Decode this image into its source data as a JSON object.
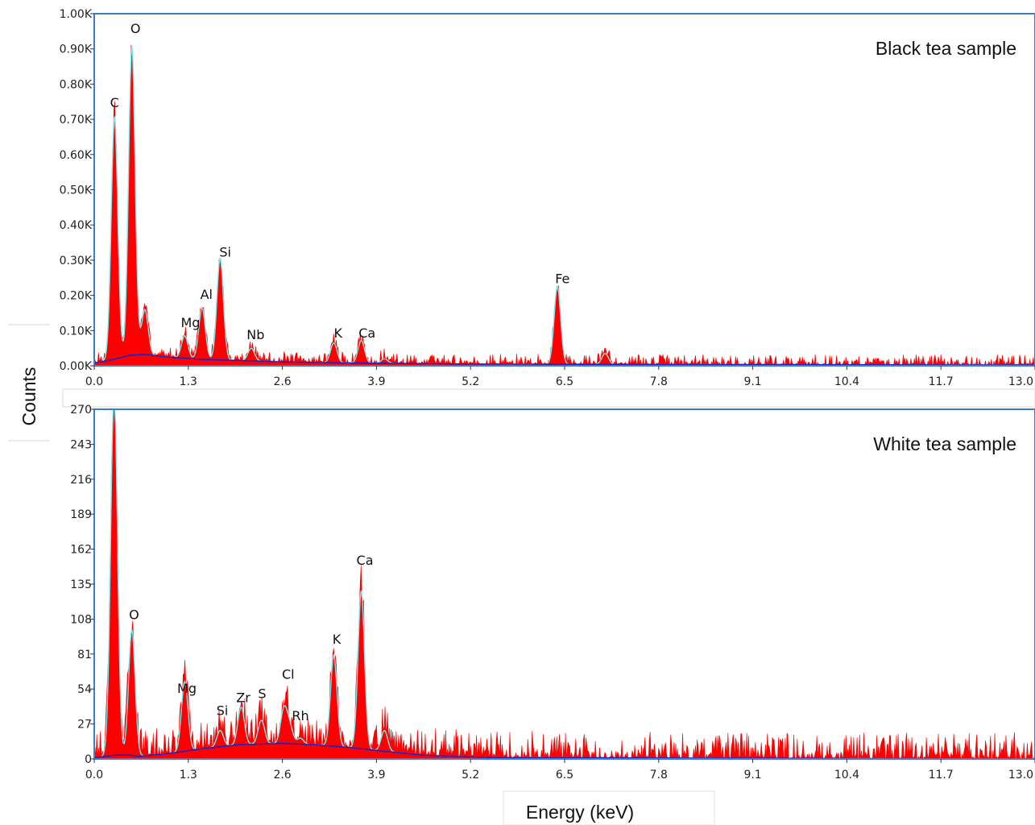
{
  "figure": {
    "ylabel": "Counts",
    "xlabel": "Energy (keV)"
  },
  "colors": {
    "fill": "#ff0000",
    "fit": "#7fe8ee",
    "background_fit": "#2020c0",
    "frame": "#3a7fc4"
  },
  "chart_data": [
    {
      "type": "area",
      "title": "Black tea sample",
      "xlim": [
        0,
        13.0
      ],
      "ylim": [
        0,
        1000
      ],
      "x_ticks": [
        0.0,
        1.3,
        2.6,
        3.9,
        5.2,
        6.5,
        7.8,
        9.1,
        10.4,
        11.7,
        13.0
      ],
      "x_tick_labels": [
        "0.0",
        "1.3",
        "2.6",
        "3.9",
        "5.2",
        "6.5",
        "7.8",
        "9.1",
        "10.4",
        "11.7",
        "13.0"
      ],
      "y_ticks": [
        0,
        100,
        200,
        300,
        400,
        500,
        600,
        700,
        800,
        900,
        1000
      ],
      "y_tick_labels": [
        "0.00K",
        "0.10K",
        "0.20K",
        "0.30K",
        "0.40K",
        "0.50K",
        "0.60K",
        "0.70K",
        "0.80K",
        "0.90K",
        "1.00K"
      ],
      "peaks": [
        {
          "energy": 0.28,
          "counts": 710
        },
        {
          "energy": 0.52,
          "counts": 910
        },
        {
          "energy": 0.7,
          "counts": 160
        },
        {
          "energy": 1.25,
          "counts": 85
        },
        {
          "energy": 1.49,
          "counts": 165
        },
        {
          "energy": 1.74,
          "counts": 305
        },
        {
          "energy": 2.17,
          "counts": 50
        },
        {
          "energy": 3.31,
          "counts": 65
        },
        {
          "energy": 3.69,
          "counts": 72
        },
        {
          "energy": 4.01,
          "counts": 20
        },
        {
          "energy": 6.4,
          "counts": 225
        },
        {
          "energy": 7.06,
          "counts": 35
        }
      ],
      "peak_labels": [
        {
          "text": "C",
          "energy": 0.28,
          "counts": 735
        },
        {
          "text": "O",
          "energy": 0.57,
          "counts": 945
        },
        {
          "text": "Mg",
          "energy": 1.33,
          "counts": 110
        },
        {
          "text": "Al",
          "energy": 1.55,
          "counts": 190
        },
        {
          "text": "Si",
          "energy": 1.81,
          "counts": 310
        },
        {
          "text": "Nb",
          "energy": 2.23,
          "counts": 75
        },
        {
          "text": "K",
          "energy": 3.37,
          "counts": 80
        },
        {
          "text": "Ca",
          "energy": 3.77,
          "counts": 80
        },
        {
          "text": "Fe",
          "energy": 6.47,
          "counts": 235
        }
      ],
      "background_curve": [
        [
          0.0,
          8
        ],
        [
          0.2,
          15
        ],
        [
          0.5,
          30
        ],
        [
          0.7,
          32
        ],
        [
          1.0,
          25
        ],
        [
          1.5,
          18
        ],
        [
          2.0,
          15
        ],
        [
          2.6,
          11
        ],
        [
          3.5,
          8
        ],
        [
          5.0,
          5
        ],
        [
          7.0,
          4
        ],
        [
          10.0,
          3
        ],
        [
          13.0,
          2
        ]
      ]
    },
    {
      "type": "area",
      "title": "White tea sample",
      "xlim": [
        0,
        13.0
      ],
      "ylim": [
        0,
        270
      ],
      "x_ticks": [
        0.0,
        1.3,
        2.6,
        3.9,
        5.2,
        6.5,
        7.8,
        9.1,
        10.4,
        11.7,
        13.0
      ],
      "x_tick_labels": [
        "0.0",
        "1.3",
        "2.6",
        "3.9",
        "5.2",
        "6.5",
        "7.8",
        "9.1",
        "10.4",
        "11.7",
        "13.0"
      ],
      "y_ticks": [
        0,
        27,
        54,
        81,
        108,
        135,
        162,
        189,
        216,
        243,
        270
      ],
      "y_tick_labels": [
        "0",
        "27",
        "54",
        "81",
        "108",
        "135",
        "162",
        "189",
        "216",
        "243",
        "270"
      ],
      "peaks": [
        {
          "energy": 0.25,
          "counts": 65
        },
        {
          "energy": 0.28,
          "counts": 235
        },
        {
          "energy": 0.52,
          "counts": 100
        },
        {
          "energy": 1.25,
          "counts": 60
        },
        {
          "energy": 1.74,
          "counts": 22
        },
        {
          "energy": 2.03,
          "counts": 40
        },
        {
          "energy": 2.31,
          "counts": 30
        },
        {
          "energy": 2.62,
          "counts": 38
        },
        {
          "energy": 2.7,
          "counts": 25
        },
        {
          "energy": 2.85,
          "counts": 16
        },
        {
          "energy": 3.31,
          "counts": 80
        },
        {
          "energy": 3.69,
          "counts": 130
        },
        {
          "energy": 4.01,
          "counts": 22
        }
      ],
      "peak_labels": [
        {
          "text": "O",
          "energy": 0.55,
          "counts": 108
        },
        {
          "text": "Mg",
          "energy": 1.28,
          "counts": 51
        },
        {
          "text": "Si",
          "energy": 1.77,
          "counts": 34
        },
        {
          "text": "Zr",
          "energy": 2.06,
          "counts": 44
        },
        {
          "text": "S",
          "energy": 2.32,
          "counts": 47
        },
        {
          "text": "Cl",
          "energy": 2.68,
          "counts": 62
        },
        {
          "text": "Rh",
          "energy": 2.85,
          "counts": 30
        },
        {
          "text": "K",
          "energy": 3.35,
          "counts": 89
        },
        {
          "text": "Ca",
          "energy": 3.74,
          "counts": 150
        }
      ],
      "background_curve": [
        [
          0.0,
          1
        ],
        [
          0.3,
          3
        ],
        [
          0.5,
          3
        ],
        [
          0.6,
          2
        ],
        [
          1.0,
          4
        ],
        [
          1.5,
          8
        ],
        [
          2.0,
          11
        ],
        [
          2.6,
          12
        ],
        [
          3.0,
          11
        ],
        [
          3.5,
          9
        ],
        [
          4.0,
          6
        ],
        [
          4.5,
          3
        ],
        [
          5.5,
          1
        ],
        [
          13.0,
          0
        ]
      ]
    }
  ]
}
